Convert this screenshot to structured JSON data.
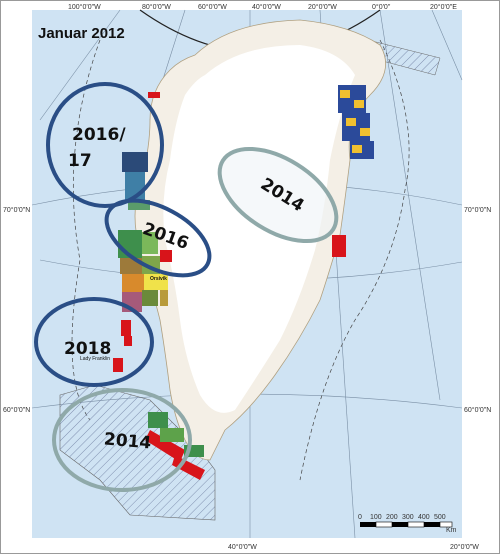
{
  "map": {
    "title": "Januar 2012",
    "ocean_color": "#cfe3f3",
    "land_color": "#f4efe6",
    "ice_color": "#ffffff",
    "grid_labels_top": [
      "100°0'0\"W",
      "80°0'0\"W",
      "60°0'0\"W",
      "40°0'0\"W",
      "20°0'0\"W",
      "0°0'0\"",
      "20°0'0\"E"
    ],
    "grid_labels_left": [
      "70°0'0\"N",
      "60°0'0\"N"
    ],
    "grid_labels_right": [
      "70°0'0\"N",
      "60°0'0\"N"
    ],
    "grid_labels_bottom": [
      "40°0'0\"W",
      "20°0'0\"W"
    ],
    "scale_ticks": [
      "0",
      "100",
      "200",
      "300",
      "400",
      "500"
    ],
    "scale_unit": "Km",
    "place_labels": {
      "orsivik": "Orsivik",
      "lady_franklin": "Lady Franklin"
    }
  },
  "ovals": [
    {
      "label": "2016/\n17",
      "label_line1": "2016/",
      "label_line2": "17",
      "color": "#2a4e86"
    },
    {
      "label": "2016",
      "color": "#2a4e86"
    },
    {
      "label": "2018",
      "color": "#2a4e86"
    },
    {
      "label": "2014",
      "color": "#8fa9a9"
    },
    {
      "label": "2014",
      "color": "#8fa9a9"
    }
  ]
}
